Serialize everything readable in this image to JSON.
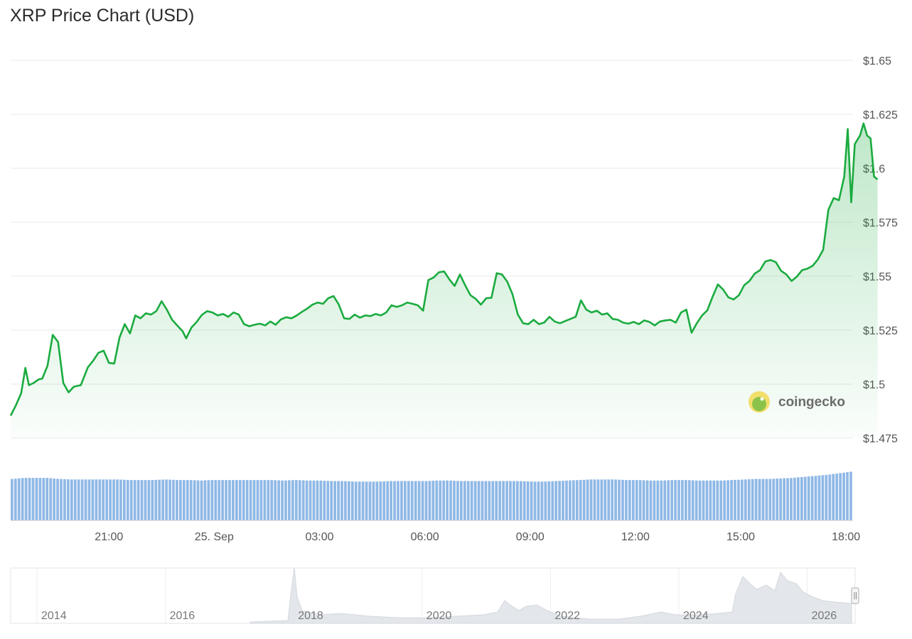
{
  "title": "XRP Price Chart (USD)",
  "brand": {
    "name": "coingecko",
    "icon": "gecko-logo-icon"
  },
  "colors": {
    "line": "#1aab3f",
    "volume": "#8fb8e6",
    "grid": "#e9e9e9",
    "navigator": "#e3e6ea"
  },
  "chart_data": {
    "type": "area",
    "title": "XRP Price Chart (USD)",
    "y_ticks": [
      "$1.475",
      "$1.5",
      "$1.525",
      "$1.55",
      "$1.575",
      "$1.6",
      "$1.625",
      "$1.65"
    ],
    "ylim": [
      1.475,
      1.65
    ],
    "x_ticks": [
      "21:00",
      "25. Sep",
      "03:00",
      "06:00",
      "09:00",
      "12:00",
      "15:00",
      "18:00"
    ],
    "x_tick_hours": [
      21,
      24,
      27,
      30,
      33,
      36,
      39,
      42
    ],
    "xlim_hours": [
      18.2,
      42.2
    ],
    "grid": true,
    "price_series": [
      [
        18.2,
        1.4854
      ],
      [
        18.35,
        1.4902
      ],
      [
        18.5,
        1.4958
      ],
      [
        18.62,
        1.5075
      ],
      [
        18.72,
        1.4995
      ],
      [
        18.85,
        1.5005
      ],
      [
        19.0,
        1.5022
      ],
      [
        19.1,
        1.5025
      ],
      [
        19.25,
        1.5085
      ],
      [
        19.4,
        1.5228
      ],
      [
        19.55,
        1.5195
      ],
      [
        19.7,
        1.5005
      ],
      [
        19.85,
        1.4962
      ],
      [
        20.0,
        1.4988
      ],
      [
        20.2,
        1.4995
      ],
      [
        20.4,
        1.5078
      ],
      [
        20.55,
        1.5108
      ],
      [
        20.7,
        1.5145
      ],
      [
        20.85,
        1.5155
      ],
      [
        21.0,
        1.5098
      ],
      [
        21.15,
        1.5095
      ],
      [
        21.3,
        1.5215
      ],
      [
        21.45,
        1.5278
      ],
      [
        21.6,
        1.5235
      ],
      [
        21.75,
        1.5318
      ],
      [
        21.9,
        1.5305
      ],
      [
        22.05,
        1.5328
      ],
      [
        22.2,
        1.5322
      ],
      [
        22.35,
        1.5338
      ],
      [
        22.5,
        1.5384
      ],
      [
        22.65,
        1.5345
      ],
      [
        22.8,
        1.5298
      ],
      [
        23.0,
        1.5262
      ],
      [
        23.1,
        1.5245
      ],
      [
        23.2,
        1.5212
      ],
      [
        23.35,
        1.5262
      ],
      [
        23.5,
        1.5288
      ],
      [
        23.65,
        1.5321
      ],
      [
        23.8,
        1.5338
      ],
      [
        23.95,
        1.5332
      ],
      [
        24.1,
        1.5318
      ],
      [
        24.25,
        1.5325
      ],
      [
        24.4,
        1.5312
      ],
      [
        24.55,
        1.5332
      ],
      [
        24.7,
        1.5322
      ],
      [
        24.85,
        1.5278
      ],
      [
        25.0,
        1.5268
      ],
      [
        25.15,
        1.5275
      ],
      [
        25.3,
        1.528
      ],
      [
        25.45,
        1.5272
      ],
      [
        25.6,
        1.529
      ],
      [
        25.75,
        1.5275
      ],
      [
        25.9,
        1.53
      ],
      [
        26.05,
        1.531
      ],
      [
        26.2,
        1.5305
      ],
      [
        26.35,
        1.5318
      ],
      [
        26.5,
        1.5335
      ],
      [
        26.65,
        1.535
      ],
      [
        26.8,
        1.5368
      ],
      [
        26.95,
        1.5378
      ],
      [
        27.1,
        1.5372
      ],
      [
        27.25,
        1.5398
      ],
      [
        27.4,
        1.5408
      ],
      [
        27.55,
        1.5368
      ],
      [
        27.7,
        1.5305
      ],
      [
        27.85,
        1.5302
      ],
      [
        28.0,
        1.5322
      ],
      [
        28.15,
        1.5308
      ],
      [
        28.3,
        1.5318
      ],
      [
        28.45,
        1.5315
      ],
      [
        28.6,
        1.5325
      ],
      [
        28.75,
        1.5318
      ],
      [
        28.9,
        1.5332
      ],
      [
        29.05,
        1.5365
      ],
      [
        29.2,
        1.5358
      ],
      [
        29.35,
        1.5365
      ],
      [
        29.5,
        1.5378
      ],
      [
        29.65,
        1.5372
      ],
      [
        29.8,
        1.5365
      ],
      [
        29.95,
        1.534
      ],
      [
        30.1,
        1.5482
      ],
      [
        30.25,
        1.5494
      ],
      [
        30.4,
        1.5518
      ],
      [
        30.55,
        1.5522
      ],
      [
        30.7,
        1.5485
      ],
      [
        30.85,
        1.5455
      ],
      [
        31.0,
        1.5508
      ],
      [
        31.15,
        1.5458
      ],
      [
        31.3,
        1.5412
      ],
      [
        31.45,
        1.5395
      ],
      [
        31.6,
        1.5368
      ],
      [
        31.75,
        1.5398
      ],
      [
        31.9,
        1.54
      ],
      [
        32.05,
        1.5514
      ],
      [
        32.2,
        1.5508
      ],
      [
        32.35,
        1.5474
      ],
      [
        32.5,
        1.5415
      ],
      [
        32.65,
        1.5322
      ],
      [
        32.8,
        1.5282
      ],
      [
        32.95,
        1.5278
      ],
      [
        33.1,
        1.5298
      ],
      [
        33.25,
        1.5278
      ],
      [
        33.4,
        1.5285
      ],
      [
        33.55,
        1.5312
      ],
      [
        33.7,
        1.529
      ],
      [
        33.85,
        1.5282
      ],
      [
        34.0,
        1.5292
      ],
      [
        34.15,
        1.5302
      ],
      [
        34.3,
        1.5312
      ],
      [
        34.45,
        1.5388
      ],
      [
        34.6,
        1.5345
      ],
      [
        34.75,
        1.5332
      ],
      [
        34.9,
        1.534
      ],
      [
        35.05,
        1.5322
      ],
      [
        35.2,
        1.5328
      ],
      [
        35.35,
        1.5302
      ],
      [
        35.5,
        1.5298
      ],
      [
        35.65,
        1.5285
      ],
      [
        35.8,
        1.528
      ],
      [
        35.95,
        1.5288
      ],
      [
        36.1,
        1.5278
      ],
      [
        36.25,
        1.5295
      ],
      [
        36.4,
        1.5288
      ],
      [
        36.55,
        1.5272
      ],
      [
        36.7,
        1.529
      ],
      [
        36.85,
        1.5295
      ],
      [
        37.0,
        1.5298
      ],
      [
        37.15,
        1.5285
      ],
      [
        37.3,
        1.5332
      ],
      [
        37.45,
        1.5345
      ],
      [
        37.6,
        1.5238
      ],
      [
        37.75,
        1.5282
      ],
      [
        37.9,
        1.5318
      ],
      [
        38.05,
        1.5342
      ],
      [
        38.2,
        1.5405
      ],
      [
        38.35,
        1.5462
      ],
      [
        38.5,
        1.5438
      ],
      [
        38.65,
        1.5402
      ],
      [
        38.8,
        1.5392
      ],
      [
        38.95,
        1.5412
      ],
      [
        39.1,
        1.5458
      ],
      [
        39.25,
        1.5478
      ],
      [
        39.4,
        1.5512
      ],
      [
        39.55,
        1.5528
      ],
      [
        39.7,
        1.5568
      ],
      [
        39.85,
        1.5575
      ],
      [
        40.0,
        1.5565
      ],
      [
        40.15,
        1.5525
      ],
      [
        40.3,
        1.5508
      ],
      [
        40.45,
        1.5478
      ],
      [
        40.6,
        1.5498
      ],
      [
        40.75,
        1.5528
      ],
      [
        40.9,
        1.5535
      ],
      [
        41.05,
        1.5548
      ],
      [
        41.2,
        1.5578
      ],
      [
        41.35,
        1.5622
      ],
      [
        41.5,
        1.5808
      ],
      [
        41.65,
        1.5862
      ],
      [
        41.8,
        1.5852
      ],
      [
        41.95,
        1.5962
      ],
      [
        42.05,
        1.6182
      ],
      [
        42.15,
        1.5842
      ],
      [
        42.25,
        1.6112
      ],
      [
        42.4,
        1.6152
      ],
      [
        42.5,
        1.6208
      ],
      [
        42.6,
        1.6152
      ],
      [
        42.7,
        1.6138
      ],
      [
        42.8,
        1.5962
      ],
      [
        42.9,
        1.5948
      ]
    ],
    "volume_series": [
      0.8,
      0.82,
      0.82,
      0.82,
      0.8,
      0.79,
      0.79,
      0.79,
      0.79,
      0.79,
      0.78,
      0.78,
      0.78,
      0.79,
      0.78,
      0.78,
      0.77,
      0.78,
      0.78,
      0.78,
      0.78,
      0.78,
      0.78,
      0.77,
      0.78,
      0.77,
      0.77,
      0.76,
      0.76,
      0.75,
      0.75,
      0.75,
      0.76,
      0.76,
      0.76,
      0.76,
      0.77,
      0.77,
      0.76,
      0.76,
      0.76,
      0.76,
      0.76,
      0.76,
      0.75,
      0.75,
      0.76,
      0.77,
      0.78,
      0.79,
      0.79,
      0.79,
      0.78,
      0.78,
      0.77,
      0.77,
      0.78,
      0.78,
      0.77,
      0.77,
      0.77,
      0.78,
      0.79,
      0.8,
      0.8,
      0.81,
      0.82,
      0.84,
      0.86,
      0.88,
      0.91,
      0.94
    ],
    "navigator": {
      "x_ticks": [
        "2014",
        "2016",
        "2018",
        "2020",
        "2022",
        "2024",
        "2026"
      ]
    }
  }
}
